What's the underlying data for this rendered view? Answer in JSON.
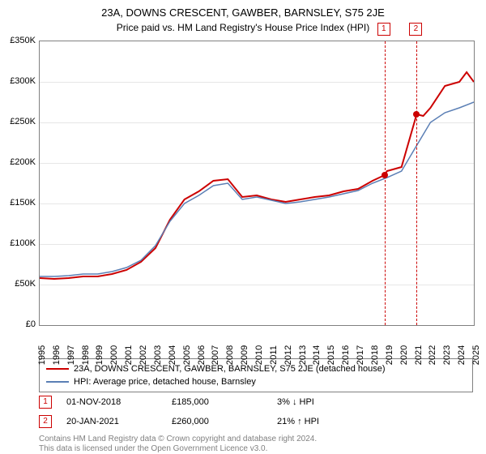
{
  "title": "23A, DOWNS CRESCENT, GAWBER, BARNSLEY, S75 2JE",
  "subtitle": "Price paid vs. HM Land Registry's House Price Index (HPI)",
  "chart": {
    "type": "line",
    "xlim": [
      1995,
      2025
    ],
    "ylim": [
      0,
      350000
    ],
    "ytick_step": 50000,
    "ytick_prefix": "£",
    "ytick_suffix": "K",
    "x_years": [
      1995,
      1996,
      1997,
      1998,
      1999,
      2000,
      2001,
      2002,
      2003,
      2004,
      2005,
      2006,
      2007,
      2008,
      2009,
      2010,
      2011,
      2012,
      2013,
      2014,
      2015,
      2016,
      2017,
      2018,
      2019,
      2020,
      2021,
      2022,
      2023,
      2024,
      2025
    ],
    "series": [
      {
        "name": "property",
        "color": "#cc0000",
        "width": 2,
        "label": "23A, DOWNS CRESCENT, GAWBER, BARNSLEY, S75 2JE (detached house)",
        "points": [
          [
            1995,
            58000
          ],
          [
            1996,
            57000
          ],
          [
            1997,
            58000
          ],
          [
            1998,
            60000
          ],
          [
            1999,
            60000
          ],
          [
            2000,
            63000
          ],
          [
            2001,
            68000
          ],
          [
            2002,
            78000
          ],
          [
            2003,
            95000
          ],
          [
            2004,
            130000
          ],
          [
            2005,
            155000
          ],
          [
            2006,
            165000
          ],
          [
            2007,
            178000
          ],
          [
            2008,
            180000
          ],
          [
            2009,
            158000
          ],
          [
            2010,
            160000
          ],
          [
            2011,
            155000
          ],
          [
            2012,
            152000
          ],
          [
            2013,
            155000
          ],
          [
            2014,
            158000
          ],
          [
            2015,
            160000
          ],
          [
            2016,
            165000
          ],
          [
            2017,
            168000
          ],
          [
            2018,
            178000
          ],
          [
            2018.83,
            185000
          ],
          [
            2019,
            190000
          ],
          [
            2020,
            195000
          ],
          [
            2021.05,
            260000
          ],
          [
            2021.5,
            258000
          ],
          [
            2022,
            268000
          ],
          [
            2023,
            295000
          ],
          [
            2024,
            300000
          ],
          [
            2024.5,
            312000
          ],
          [
            2025,
            300000
          ]
        ]
      },
      {
        "name": "hpi",
        "color": "#5b7fb5",
        "width": 1.5,
        "label": "HPI: Average price, detached house, Barnsley",
        "points": [
          [
            1995,
            60000
          ],
          [
            1996,
            60000
          ],
          [
            1997,
            61000
          ],
          [
            1998,
            63000
          ],
          [
            1999,
            63000
          ],
          [
            2000,
            66000
          ],
          [
            2001,
            71000
          ],
          [
            2002,
            80000
          ],
          [
            2003,
            98000
          ],
          [
            2004,
            128000
          ],
          [
            2005,
            150000
          ],
          [
            2006,
            160000
          ],
          [
            2007,
            172000
          ],
          [
            2008,
            175000
          ],
          [
            2009,
            155000
          ],
          [
            2010,
            158000
          ],
          [
            2011,
            154000
          ],
          [
            2012,
            150000
          ],
          [
            2013,
            152000
          ],
          [
            2014,
            155000
          ],
          [
            2015,
            158000
          ],
          [
            2016,
            162000
          ],
          [
            2017,
            166000
          ],
          [
            2018,
            175000
          ],
          [
            2019,
            182000
          ],
          [
            2020,
            190000
          ],
          [
            2021,
            220000
          ],
          [
            2022,
            250000
          ],
          [
            2023,
            262000
          ],
          [
            2024,
            268000
          ],
          [
            2025,
            275000
          ]
        ]
      }
    ],
    "transactions": [
      {
        "badge": "1",
        "year": 2018.83,
        "price": 185000
      },
      {
        "badge": "2",
        "year": 2021.05,
        "price": 260000
      }
    ],
    "grid_color": "#e6e6e6",
    "border_color": "#808080",
    "background_color": "#ffffff"
  },
  "legend": {
    "items": [
      {
        "color": "#cc0000",
        "label": "23A, DOWNS CRESCENT, GAWBER, BARNSLEY, S75 2JE (detached house)"
      },
      {
        "color": "#5b7fb5",
        "label": "HPI: Average price, detached house, Barnsley"
      }
    ]
  },
  "transactions_table": [
    {
      "badge": "1",
      "date": "01-NOV-2018",
      "price": "£185,000",
      "diff": "3% ↓ HPI"
    },
    {
      "badge": "2",
      "date": "20-JAN-2021",
      "price": "£260,000",
      "diff": "21% ↑ HPI"
    }
  ],
  "footer": {
    "line1": "Contains HM Land Registry data © Crown copyright and database right 2024.",
    "line2": "This data is licensed under the Open Government Licence v3.0."
  }
}
